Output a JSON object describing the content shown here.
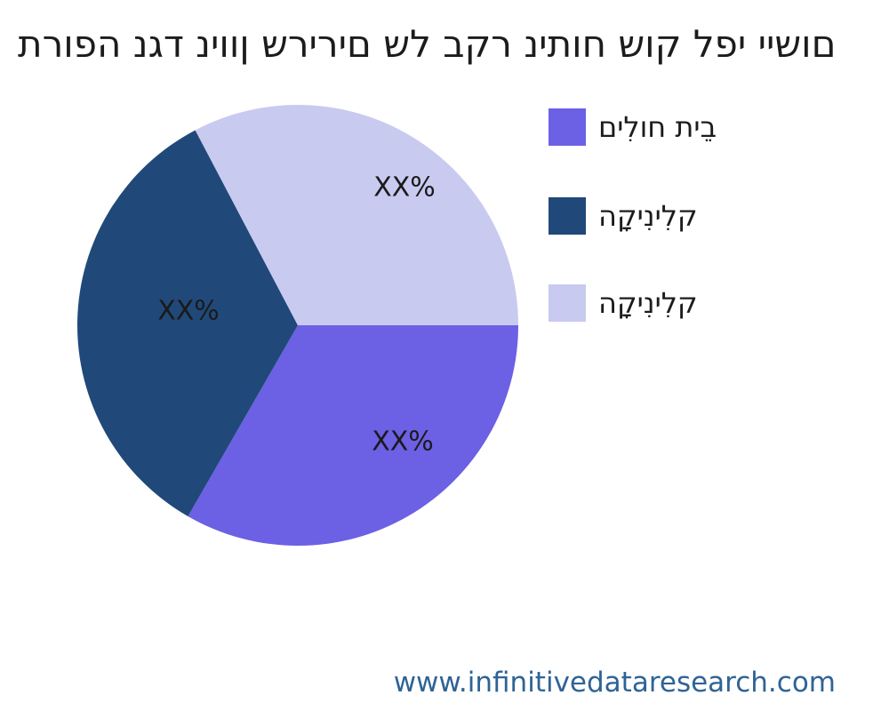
{
  "title": "תרופה נגד ניוון שרירים של בקר ניתוח שוק לפי יישום",
  "title_rendering": "logical-order-drawn-LTR (visually reversed Hebrew, matplotlib style)",
  "footer": {
    "url": "www.infinitivedataresearch.com",
    "color": "#2f6396"
  },
  "chart_data": {
    "type": "pie",
    "title": "תרופה נגד ניוון שרירים של בקר ניתוח שוק לפי יישום",
    "start_angle_deg": 0,
    "direction": "clockwise",
    "legend_position": "right",
    "percent_labels_masked": true,
    "slices": [
      {
        "label": "בֵית חולִים",
        "display_pct": "XX%",
        "value": 33.3,
        "color": "#6c60e4"
      },
      {
        "label": "קלִינִיקָה",
        "display_pct": "XX%",
        "value": 34.0,
        "color": "#20497a"
      },
      {
        "label": "קלִינִיקָה",
        "display_pct": "XX%",
        "value": 32.7,
        "color": "#c9caf0"
      }
    ]
  }
}
